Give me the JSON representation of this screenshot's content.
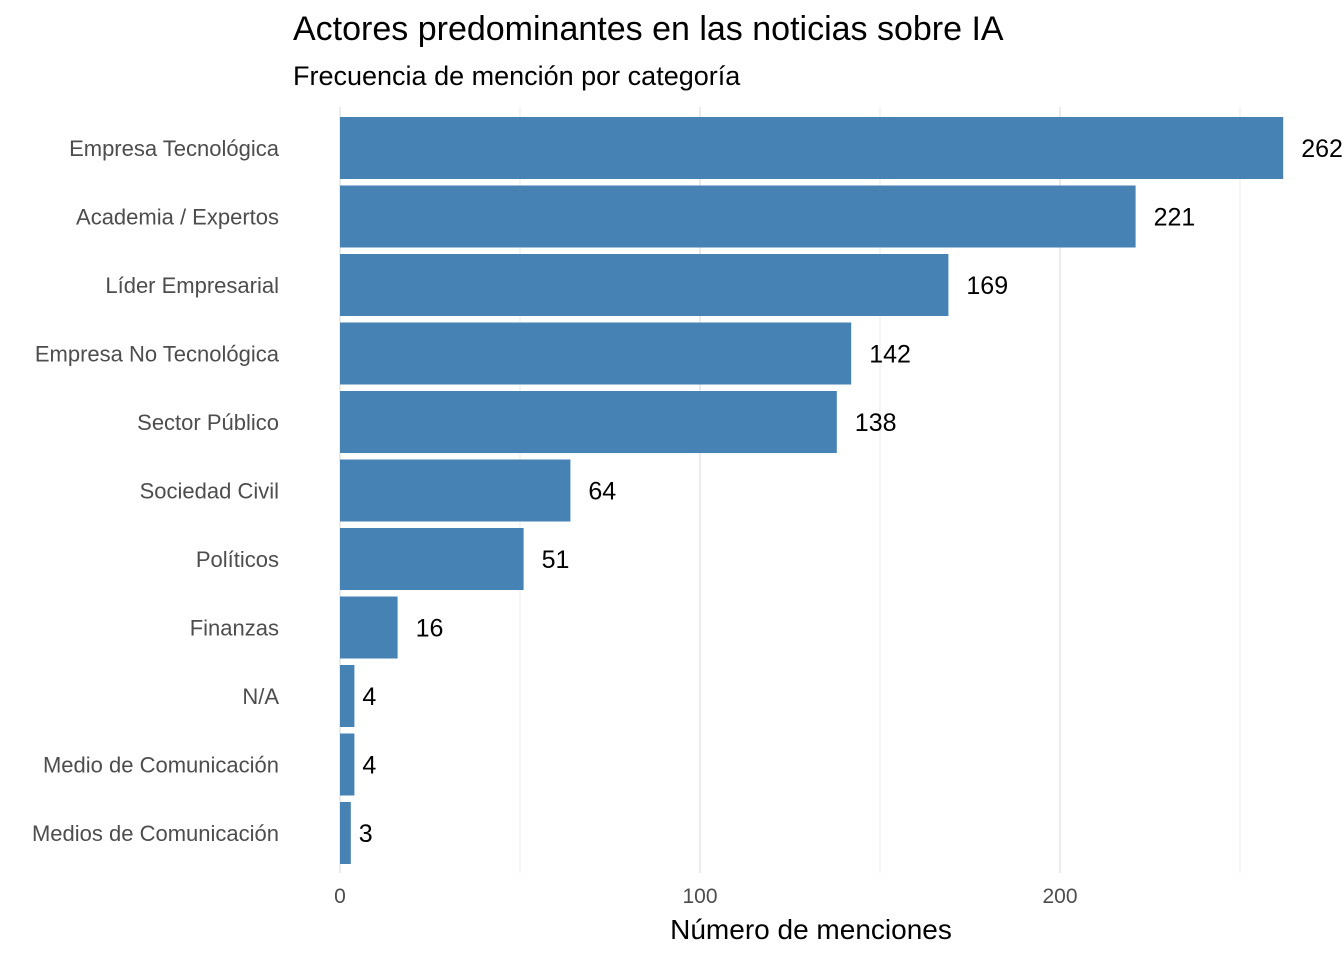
{
  "chart_data": {
    "type": "bar",
    "orientation": "horizontal",
    "title": "Actores predominantes en las noticias sobre IA",
    "subtitle": "Frecuencia de mención por categoría",
    "xlabel": "Número de menciones",
    "ylabel": "",
    "categories": [
      "Empresa Tecnológica",
      "Academia / Expertos",
      "Líder Empresarial",
      "Empresa No Tecnológica",
      "Sector Público",
      "Sociedad Civil",
      "Políticos",
      "Finanzas",
      "N/A",
      "Medio de Comunicación",
      "Medios de Comunicación"
    ],
    "values": [
      262,
      221,
      169,
      142,
      138,
      64,
      51,
      16,
      4,
      4,
      3
    ],
    "xticks": [
      0,
      100,
      200
    ],
    "xlim": [
      0,
      262
    ],
    "grid": true,
    "bar_color": "#4682B4"
  }
}
